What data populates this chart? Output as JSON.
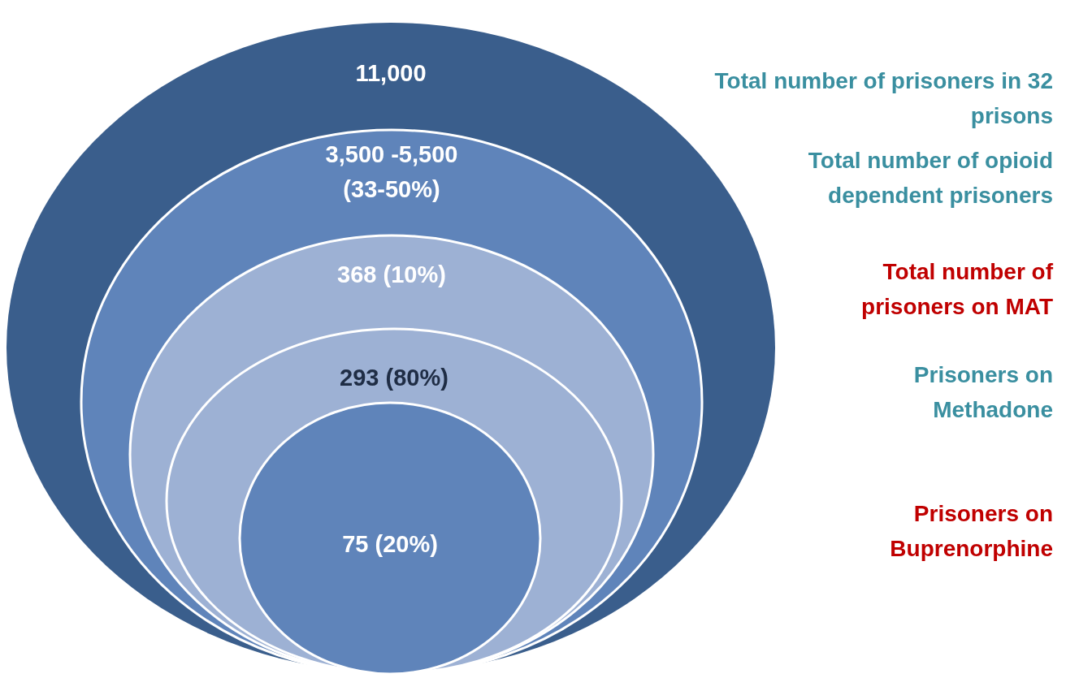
{
  "chart_data": {
    "type": "other",
    "categories": [
      "Total number of prisoners in 32\nprisons",
      "Total number of opioid\ndependent prisoners",
      "Total number of\nprisoners on MAT",
      "Prisoners on\nMethadone",
      "Prisoners on\nBuprenorphine"
    ],
    "values": [
      11000,
      null,
      368,
      293,
      75
    ],
    "value_labels": [
      "11,000",
      "3,500 -5,500\n(33-50%)",
      "368 (10%)",
      "293 (80%)",
      "75 (20%)"
    ],
    "colors": [
      "#3a5e8c",
      "#5f84ba",
      "#9db1d4",
      "#9db1d4",
      "#5f84ba"
    ]
  }
}
